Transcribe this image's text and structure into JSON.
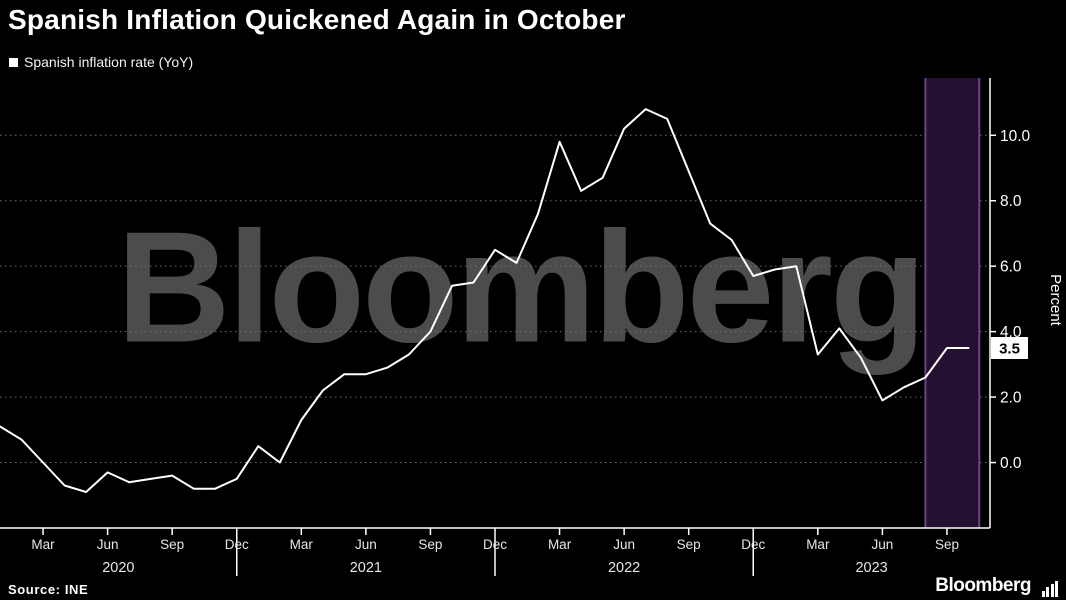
{
  "header": {
    "title": "Spanish Inflation Quickened Again in October",
    "legend_label": "Spanish inflation rate (YoY)",
    "legend_marker_icon": "filled-square"
  },
  "watermark": {
    "text": "Bloomberg"
  },
  "footer": {
    "source": "Source: INE",
    "brand": "Bloomberg",
    "brand_icon": "bar-chart-icon"
  },
  "chart_data": {
    "type": "line",
    "title": "Spanish Inflation Quickened Again in October",
    "ylabel": "Percent",
    "ylim": [
      -2.0,
      11.75
    ],
    "x_start": "2020-01",
    "x_freq": "monthly",
    "series": [
      {
        "name": "Spanish inflation rate (YoY)",
        "color": "#ffffff",
        "values": [
          1.1,
          0.7,
          0.0,
          -0.7,
          -0.9,
          -0.3,
          -0.6,
          -0.5,
          -0.4,
          -0.8,
          -0.8,
          -0.5,
          0.5,
          0.0,
          1.3,
          2.2,
          2.7,
          2.7,
          2.9,
          3.3,
          4.0,
          5.4,
          5.5,
          6.5,
          6.1,
          7.6,
          9.8,
          8.3,
          8.7,
          10.2,
          10.8,
          10.5,
          8.9,
          7.3,
          6.8,
          5.7,
          5.9,
          6.0,
          3.3,
          4.1,
          3.2,
          1.9,
          2.3,
          2.6,
          3.5,
          3.5
        ]
      }
    ],
    "yticks": [
      {
        "v": 0,
        "label": "0.0"
      },
      {
        "v": 2,
        "label": "2.0"
      },
      {
        "v": 4,
        "label": "4.0"
      },
      {
        "v": 6,
        "label": "6.0"
      },
      {
        "v": 8,
        "label": "8.0"
      },
      {
        "v": 10,
        "label": "10.0"
      }
    ],
    "xticks": [
      {
        "i": 2,
        "label": "Mar"
      },
      {
        "i": 5,
        "label": "Jun"
      },
      {
        "i": 8,
        "label": "Sep"
      },
      {
        "i": 11,
        "label": "Dec",
        "long": true
      },
      {
        "i": 14,
        "label": "Mar"
      },
      {
        "i": 17,
        "label": "Jun"
      },
      {
        "i": 20,
        "label": "Sep"
      },
      {
        "i": 23,
        "label": "Dec",
        "long": true
      },
      {
        "i": 26,
        "label": "Mar"
      },
      {
        "i": 29,
        "label": "Jun"
      },
      {
        "i": 32,
        "label": "Sep"
      },
      {
        "i": 35,
        "label": "Dec",
        "long": true
      },
      {
        "i": 38,
        "label": "Mar"
      },
      {
        "i": 41,
        "label": "Jun"
      },
      {
        "i": 44,
        "label": "Sep"
      }
    ],
    "year_labels": [
      {
        "label": "2020",
        "center_index": 5.5
      },
      {
        "label": "2021",
        "center_index": 17
      },
      {
        "label": "2022",
        "center_index": 29
      },
      {
        "label": "2023",
        "center_index": 40.5
      }
    ],
    "highlight_band": {
      "from_index": 43,
      "to_index": 45.5,
      "fill": "#241031",
      "edge_color": "#6e4287"
    },
    "last_point": {
      "index": 45,
      "value": 3.5,
      "label": "3.5"
    },
    "colors": {
      "background": "#000000",
      "line": "#ffffff",
      "grid": "#707070",
      "axis": "#ffffff",
      "tick_text": "#e6e6e6"
    },
    "grid": "dotted-horizontal",
    "legend_position": "top-left",
    "watermark": "Bloomberg"
  }
}
